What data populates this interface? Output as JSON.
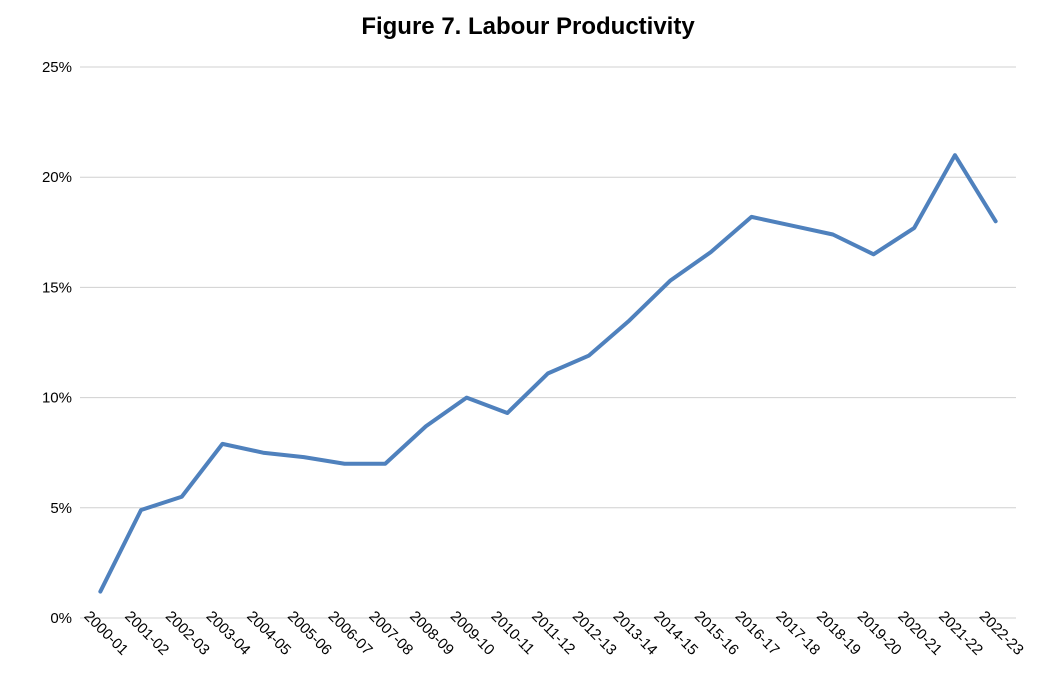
{
  "chart_data": {
    "type": "line",
    "title": "Figure 7. Labour Productivity",
    "xlabel": "",
    "ylabel": "",
    "categories": [
      "2000-01",
      "2001-02",
      "2002-03",
      "2003-04",
      "2004-05",
      "2005-06",
      "2006-07",
      "2007-08",
      "2008-09",
      "2009-10",
      "2010-11",
      "2011-12",
      "2012-13",
      "2013-14",
      "2014-15",
      "2015-16",
      "2016-17",
      "2017-18",
      "2018-19",
      "2019-20",
      "2020-21",
      "2021-22",
      "2022-23"
    ],
    "series": [
      {
        "values": [
          1.2,
          4.9,
          5.5,
          7.9,
          7.5,
          7.3,
          7.0,
          7.0,
          8.7,
          10.0,
          9.3,
          11.1,
          11.9,
          13.5,
          15.3,
          16.6,
          18.2,
          17.8,
          17.4,
          16.5,
          17.7,
          21.0,
          18.0
        ]
      }
    ],
    "ylim": [
      0,
      25
    ],
    "y_ticks": [
      "0%",
      "5%",
      "10%",
      "15%",
      "20%",
      "25%"
    ],
    "y_tick_values": [
      0,
      5,
      10,
      15,
      20,
      25
    ],
    "grid": true,
    "legend": "none",
    "colors": {
      "line": "#4f81bd",
      "grid": "#d0d0d0",
      "text": "#000000"
    }
  }
}
